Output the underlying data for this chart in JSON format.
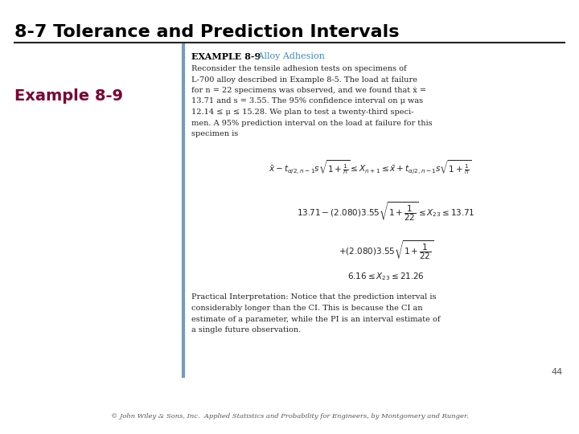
{
  "title": "8-7 Tolerance and Prediction Intervals",
  "title_fontsize": 16,
  "title_color": "#000000",
  "background_color": "#ffffff",
  "example_label": "Example 8-9",
  "example_label_fontsize": 14,
  "example_label_color": "#7b0032",
  "page_number": "44",
  "footer": "© John Wiley & Sons, Inc.  Applied Statistics and Probability for Engineers, by Montgomery and Runger.",
  "box_line_color": "#7799bb",
  "example_title": "EXAMPLE 8-9",
  "example_subtitle": "   Alloy Adhesion",
  "example_subtitle_color": "#4488bb",
  "body_text_lines": [
    "Reconsider the tensile adhesion tests on specimens of",
    "L-700 alloy described in Example 8-5. The load at failure",
    "for n = 22 specimens was observed, and we found that ẋ =",
    "13.71 and s = 3.55. The 95% confidence interval on μ was",
    "12.14 ≤ μ ≤ 15.28. We plan to test a twenty-third speci-",
    "men. A 95% prediction interval on the load at failure for this",
    "specimen is"
  ],
  "practical_text_lines": [
    "Practical Interpretation: Notice that the prediction interval is",
    "considerably longer than the CI. This is because the CI an",
    "estimate of a parameter, while the PI is an interval estimate of",
    "a single future observation."
  ],
  "formula1": "$\\bar{x} - t_{\\alpha/2,n-1}s\\sqrt{1+\\frac{1}{n}} \\leq X_{n+1} \\leq \\bar{x} + t_{\\alpha/2,n-1}s\\sqrt{1+\\frac{1}{n}}$",
  "formula2": "$13.71 - (2.080)3.55\\sqrt{1+\\dfrac{1}{22}} \\leq X_{23} \\leq 13.71$",
  "formula3": "$+ (2.080)3.55\\sqrt{1+\\dfrac{1}{22}}$",
  "formula4": "$6.16 \\leq X_{23} \\leq 21.26$"
}
